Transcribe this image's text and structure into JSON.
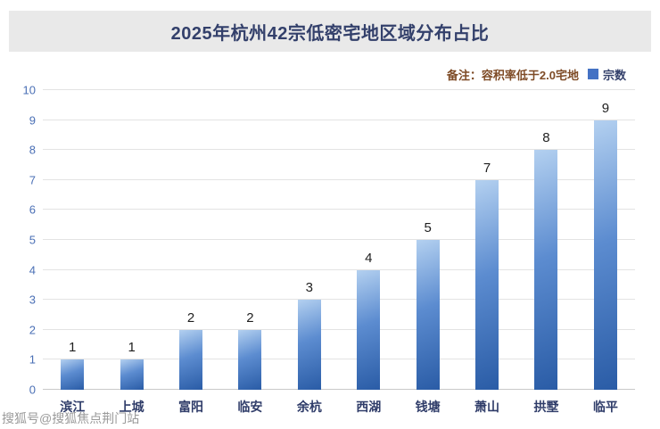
{
  "page": {
    "title": "2025年杭州42宗低密宅地区域分布占比",
    "note": "备注：容积率低于2.0宅地",
    "legend_label": "宗数",
    "watermark": "搜狐号@搜狐焦点荆门站"
  },
  "colors": {
    "accent_blue": "#4472C4",
    "banner_bg": "#E9E9E9",
    "title_color": "#33406B",
    "note_color": "#7E4B26",
    "axis_label_color": "#4A6FB5",
    "category_color": "#2F3C69",
    "value_label_color": "#1F1F1F",
    "grid_color": "#E3E3E3",
    "bar_light": "#B3D0F0",
    "bar_mid": "#5C8CD0",
    "bar_dark": "#2A5CA6",
    "watermark_color": "#9A9A9A"
  },
  "chart_data": {
    "type": "bar",
    "title": "2025年杭州42宗低密宅地区域分布占比",
    "annotation": "备注：容积率低于2.0宅地",
    "categories": [
      "滨江",
      "上城",
      "富阳",
      "临安",
      "余杭",
      "西湖",
      "钱塘",
      "萧山",
      "拱墅",
      "临平"
    ],
    "series": [
      {
        "name": "宗数",
        "values": [
          1,
          1,
          2,
          2,
          3,
          4,
          5,
          7,
          8,
          9
        ]
      }
    ],
    "xlabel": "",
    "ylabel": "",
    "ylim": [
      0,
      10
    ],
    "ytick_step": 1,
    "yticks": [
      0,
      1,
      2,
      3,
      4,
      5,
      6,
      7,
      8,
      9,
      10
    ],
    "grid": true,
    "legend": [
      "宗数"
    ],
    "legend_position": "top-right",
    "data_labels": true
  }
}
